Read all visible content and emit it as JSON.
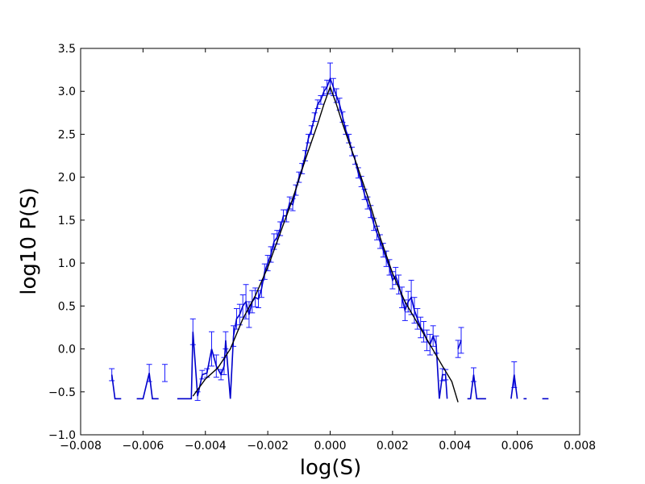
{
  "chart_data": {
    "type": "line",
    "title": "",
    "xlabel": "log(S)",
    "ylabel": "log10 P(S)",
    "xlim": [
      -0.008,
      0.008
    ],
    "ylim": [
      -1.0,
      3.5
    ],
    "xticks": [
      -0.008,
      -0.006,
      -0.004,
      -0.002,
      0.0,
      0.002,
      0.004,
      0.006,
      0.008
    ],
    "xtick_labels": [
      "−0.008",
      "−0.006",
      "−0.004",
      "−0.002",
      "0.000",
      "0.002",
      "0.004",
      "0.006",
      "0.008"
    ],
    "yticks": [
      -1.0,
      -0.5,
      0.0,
      0.5,
      1.0,
      1.5,
      2.0,
      2.5,
      3.0,
      3.5
    ],
    "ytick_labels": [
      "−1.0",
      "−0.5",
      "0.0",
      "0.5",
      "1.0",
      "1.5",
      "2.0",
      "2.5",
      "3.0",
      "3.5"
    ],
    "grid": false,
    "colors": {
      "data": "#0000cc",
      "errorbar": "#1a1aff",
      "fit": "#000000"
    },
    "series": [
      {
        "style": "errorbar-line",
        "segments": [
          [
            {
              "x": -0.007,
              "y": -0.3,
              "e": 0.07
            },
            {
              "x": -0.0069,
              "y": -0.58,
              "e": 0.0
            },
            {
              "x": -0.0067,
              "y": -0.58,
              "e": 0.0
            }
          ],
          [
            {
              "x": -0.0062,
              "y": -0.58,
              "e": 0.0
            },
            {
              "x": -0.006,
              "y": -0.58,
              "e": 0.0
            },
            {
              "x": -0.0058,
              "y": -0.28,
              "e": 0.1
            },
            {
              "x": -0.0057,
              "y": -0.58,
              "e": 0.0
            },
            {
              "x": -0.0055,
              "y": -0.58,
              "e": 0.0
            }
          ],
          [
            {
              "x": -0.0053,
              "y": -0.28,
              "e": 0.1
            }
          ],
          [
            {
              "x": -0.0049,
              "y": -0.58,
              "e": 0.0
            },
            {
              "x": -0.0047,
              "y": -0.58,
              "e": 0.0
            },
            {
              "x": -0.00445,
              "y": -0.58,
              "e": 0.0
            },
            {
              "x": -0.0044,
              "y": 0.2,
              "e": 0.15
            },
            {
              "x": -0.00425,
              "y": -0.55,
              "e": 0.05
            },
            {
              "x": -0.0041,
              "y": -0.3,
              "e": 0.05
            },
            {
              "x": -0.00395,
              "y": -0.28,
              "e": 0.05
            },
            {
              "x": -0.0038,
              "y": 0.0,
              "e": 0.2
            },
            {
              "x": -0.00365,
              "y": -0.2,
              "e": 0.13
            },
            {
              "x": -0.0035,
              "y": -0.3,
              "e": 0.06
            },
            {
              "x": -0.0034,
              "y": -0.2,
              "e": 0.1
            },
            {
              "x": -0.00335,
              "y": 0.1,
              "e": 0.1
            },
            {
              "x": -0.0032,
              "y": -0.58,
              "e": 0.0
            },
            {
              "x": -0.0031,
              "y": 0.15,
              "e": 0.12
            },
            {
              "x": -0.003,
              "y": 0.35,
              "e": 0.12
            },
            {
              "x": -0.0029,
              "y": 0.4,
              "e": 0.12
            },
            {
              "x": -0.0028,
              "y": 0.5,
              "e": 0.13
            },
            {
              "x": -0.0027,
              "y": 0.55,
              "e": 0.2
            },
            {
              "x": -0.0026,
              "y": 0.4,
              "e": 0.15
            },
            {
              "x": -0.0025,
              "y": 0.55,
              "e": 0.13
            },
            {
              "x": -0.0024,
              "y": 0.6,
              "e": 0.11
            },
            {
              "x": -0.0023,
              "y": 0.58,
              "e": 0.1
            },
            {
              "x": -0.0022,
              "y": 0.7,
              "e": 0.1
            },
            {
              "x": -0.0021,
              "y": 0.9,
              "e": 0.09
            },
            {
              "x": -0.002,
              "y": 1.0,
              "e": 0.09
            },
            {
              "x": -0.0019,
              "y": 1.1,
              "e": 0.09
            },
            {
              "x": -0.0018,
              "y": 1.25,
              "e": 0.09
            },
            {
              "x": -0.0017,
              "y": 1.3,
              "e": 0.08
            },
            {
              "x": -0.0016,
              "y": 1.4,
              "e": 0.08
            },
            {
              "x": -0.0015,
              "y": 1.55,
              "e": 0.07
            },
            {
              "x": -0.0014,
              "y": 1.55,
              "e": 0.07
            },
            {
              "x": -0.0013,
              "y": 1.7,
              "e": 0.07
            },
            {
              "x": -0.0012,
              "y": 1.68,
              "e": 0.07
            },
            {
              "x": -0.0011,
              "y": 1.85,
              "e": 0.06
            },
            {
              "x": -0.001,
              "y": 2.0,
              "e": 0.06
            },
            {
              "x": -0.0009,
              "y": 2.1,
              "e": 0.06
            },
            {
              "x": -0.0008,
              "y": 2.25,
              "e": 0.06
            },
            {
              "x": -0.0007,
              "y": 2.45,
              "e": 0.05
            },
            {
              "x": -0.0006,
              "y": 2.55,
              "e": 0.05
            },
            {
              "x": -0.0005,
              "y": 2.7,
              "e": 0.05
            },
            {
              "x": -0.0004,
              "y": 2.85,
              "e": 0.05
            },
            {
              "x": -0.0003,
              "y": 2.9,
              "e": 0.05
            },
            {
              "x": -0.0002,
              "y": 3.0,
              "e": 0.05
            },
            {
              "x": -0.0001,
              "y": 3.05,
              "e": 0.08
            },
            {
              "x": 0.0,
              "y": 3.15,
              "e": 0.18
            },
            {
              "x": 0.0001,
              "y": 3.05,
              "e": 0.1
            },
            {
              "x": 0.0002,
              "y": 2.95,
              "e": 0.08
            },
            {
              "x": 0.0003,
              "y": 2.85,
              "e": 0.07
            },
            {
              "x": 0.0004,
              "y": 2.7,
              "e": 0.06
            },
            {
              "x": 0.0005,
              "y": 2.55,
              "e": 0.05
            },
            {
              "x": 0.0006,
              "y": 2.45,
              "e": 0.05
            },
            {
              "x": 0.0007,
              "y": 2.3,
              "e": 0.05
            },
            {
              "x": 0.0008,
              "y": 2.2,
              "e": 0.05
            },
            {
              "x": 0.0009,
              "y": 2.05,
              "e": 0.06
            },
            {
              "x": 0.001,
              "y": 1.95,
              "e": 0.06
            },
            {
              "x": 0.0011,
              "y": 1.8,
              "e": 0.06
            },
            {
              "x": 0.0012,
              "y": 1.7,
              "e": 0.07
            },
            {
              "x": 0.0013,
              "y": 1.6,
              "e": 0.07
            },
            {
              "x": 0.0014,
              "y": 1.45,
              "e": 0.07
            },
            {
              "x": 0.0015,
              "y": 1.35,
              "e": 0.08
            },
            {
              "x": 0.0016,
              "y": 1.25,
              "e": 0.08
            },
            {
              "x": 0.0017,
              "y": 1.15,
              "e": 0.08
            },
            {
              "x": 0.0018,
              "y": 1.05,
              "e": 0.09
            },
            {
              "x": 0.0019,
              "y": 0.95,
              "e": 0.09
            },
            {
              "x": 0.002,
              "y": 0.8,
              "e": 0.1
            },
            {
              "x": 0.0021,
              "y": 0.85,
              "e": 0.1
            },
            {
              "x": 0.0022,
              "y": 0.75,
              "e": 0.11
            },
            {
              "x": 0.0023,
              "y": 0.6,
              "e": 0.12
            },
            {
              "x": 0.0024,
              "y": 0.45,
              "e": 0.12
            },
            {
              "x": 0.0025,
              "y": 0.55,
              "e": 0.12
            },
            {
              "x": 0.0026,
              "y": 0.6,
              "e": 0.2
            },
            {
              "x": 0.0027,
              "y": 0.45,
              "e": 0.15
            },
            {
              "x": 0.0028,
              "y": 0.35,
              "e": 0.12
            },
            {
              "x": 0.0029,
              "y": 0.25,
              "e": 0.12
            },
            {
              "x": 0.003,
              "y": 0.2,
              "e": 0.12
            },
            {
              "x": 0.0031,
              "y": 0.1,
              "e": 0.12
            },
            {
              "x": 0.0032,
              "y": 0.05,
              "e": 0.12
            },
            {
              "x": 0.0033,
              "y": 0.15,
              "e": 0.12
            },
            {
              "x": 0.0034,
              "y": 0.05,
              "e": 0.1
            },
            {
              "x": 0.0035,
              "y": -0.58,
              "e": 0.0
            },
            {
              "x": 0.0036,
              "y": -0.3,
              "e": 0.07
            },
            {
              "x": 0.0037,
              "y": -0.3,
              "e": 0.06
            },
            {
              "x": 0.00375,
              "y": -0.58,
              "e": 0.0
            }
          ],
          [
            {
              "x": 0.0041,
              "y": 0.0,
              "e": 0.1
            },
            {
              "x": 0.0042,
              "y": 0.1,
              "e": 0.15
            }
          ],
          [
            {
              "x": 0.0044,
              "y": -0.58,
              "e": 0.0
            },
            {
              "x": 0.0045,
              "y": -0.58,
              "e": 0.0
            },
            {
              "x": 0.0046,
              "y": -0.3,
              "e": 0.08
            },
            {
              "x": 0.0047,
              "y": -0.58,
              "e": 0.0
            },
            {
              "x": 0.0049,
              "y": -0.58,
              "e": 0.0
            },
            {
              "x": 0.005,
              "y": -0.58,
              "e": 0.0
            }
          ],
          [
            {
              "x": 0.0058,
              "y": -0.58,
              "e": 0.0
            },
            {
              "x": 0.0059,
              "y": -0.3,
              "e": 0.15
            },
            {
              "x": 0.006,
              "y": -0.58,
              "e": 0.0
            }
          ],
          [
            {
              "x": 0.0062,
              "y": -0.58,
              "e": 0.0
            },
            {
              "x": 0.0063,
              "y": -0.58,
              "e": 0.0
            }
          ],
          [
            {
              "x": 0.0068,
              "y": -0.58,
              "e": 0.0
            },
            {
              "x": 0.007,
              "y": -0.58,
              "e": 0.0
            }
          ]
        ]
      },
      {
        "style": "fit-line",
        "points": [
          [
            -0.0044,
            -0.55
          ],
          [
            -0.004,
            -0.35
          ],
          [
            -0.0036,
            -0.22
          ],
          [
            -0.0032,
            0.0
          ],
          [
            -0.0028,
            0.35
          ],
          [
            -0.0024,
            0.62
          ],
          [
            -0.002,
            0.95
          ],
          [
            -0.0016,
            1.35
          ],
          [
            -0.0012,
            1.75
          ],
          [
            -0.0008,
            2.2
          ],
          [
            -0.0004,
            2.62
          ],
          [
            -0.0002,
            2.85
          ],
          [
            0.0,
            3.05
          ],
          [
            0.0002,
            2.85
          ],
          [
            0.0004,
            2.62
          ],
          [
            0.0008,
            2.2
          ],
          [
            0.0012,
            1.78
          ],
          [
            0.0016,
            1.3
          ],
          [
            0.002,
            0.88
          ],
          [
            0.0024,
            0.55
          ],
          [
            0.0028,
            0.3
          ],
          [
            0.0032,
            0.05
          ],
          [
            0.0036,
            -0.2
          ],
          [
            0.0039,
            -0.38
          ],
          [
            0.0041,
            -0.62
          ]
        ]
      }
    ]
  }
}
